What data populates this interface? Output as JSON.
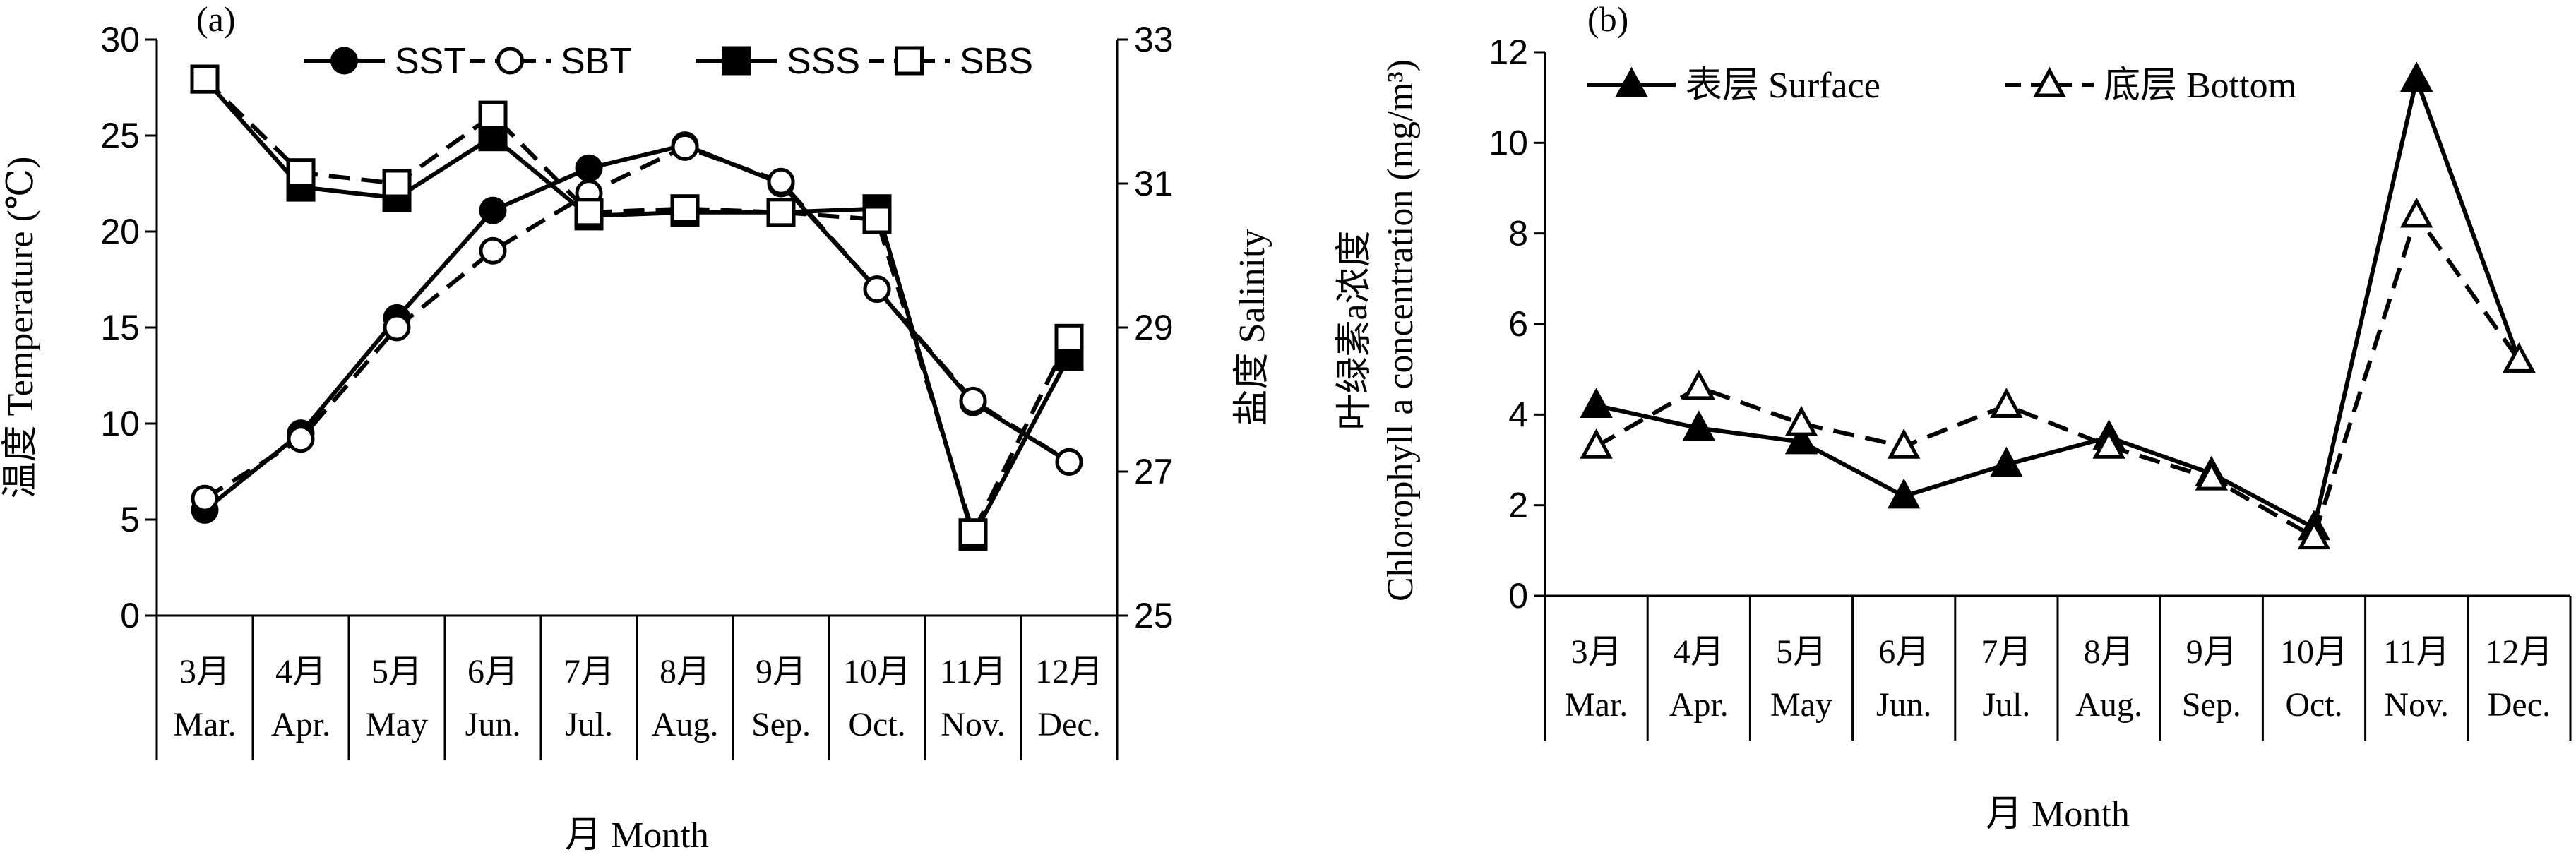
{
  "chart_data": [
    {
      "type": "line",
      "panel_label": "(a)",
      "categories": [
        {
          "zh": "3月",
          "en": "Mar."
        },
        {
          "zh": "4月",
          "en": "Apr."
        },
        {
          "zh": "5月",
          "en": "May"
        },
        {
          "zh": "6月",
          "en": "Jun."
        },
        {
          "zh": "7月",
          "en": "Jul."
        },
        {
          "zh": "8月",
          "en": "Aug."
        },
        {
          "zh": "9月",
          "en": "Sep."
        },
        {
          "zh": "10月",
          "en": "Oct."
        },
        {
          "zh": "11月",
          "en": "Nov."
        },
        {
          "zh": "12月",
          "en": "Dec."
        }
      ],
      "xlabel": "月 Month",
      "ylabel_left": "温度 Temperature (℃)",
      "ylabel_right": "盐度 Salinity",
      "ylim_left": [
        0,
        30
      ],
      "yticks_left": [
        0,
        5,
        10,
        15,
        20,
        25,
        30
      ],
      "ylim_right": [
        25,
        33
      ],
      "yticks_right": [
        25,
        27,
        29,
        31,
        33
      ],
      "legend_position": "top",
      "series": [
        {
          "name": "SST",
          "axis": "left",
          "marker": "filled-circle",
          "line": "solid",
          "values": [
            5.5,
            9.5,
            15.5,
            21.1,
            23.3,
            24.5,
            22.5,
            17.0,
            11.1,
            8.0
          ]
        },
        {
          "name": "SBT",
          "axis": "left",
          "marker": "open-circle",
          "line": "dashed",
          "values": [
            6.1,
            9.2,
            15.0,
            19.0,
            22.0,
            24.4,
            22.6,
            17.0,
            11.2,
            8.0
          ]
        },
        {
          "name": "SSS",
          "axis": "right",
          "marker": "filled-square",
          "line": "solid",
          "values": [
            32.45,
            30.95,
            30.8,
            31.65,
            30.55,
            30.6,
            30.6,
            30.65,
            26.1,
            28.6
          ]
        },
        {
          "name": "SBS",
          "axis": "right",
          "marker": "open-square",
          "line": "dashed",
          "values": [
            32.45,
            31.15,
            31.0,
            31.95,
            30.6,
            30.65,
            30.6,
            30.5,
            26.15,
            28.85
          ]
        }
      ]
    },
    {
      "type": "line",
      "panel_label": "(b)",
      "categories": [
        {
          "zh": "3月",
          "en": "Mar."
        },
        {
          "zh": "4月",
          "en": "Apr."
        },
        {
          "zh": "5月",
          "en": "May"
        },
        {
          "zh": "6月",
          "en": "Jun."
        },
        {
          "zh": "7月",
          "en": "Jul."
        },
        {
          "zh": "8月",
          "en": "Aug."
        },
        {
          "zh": "9月",
          "en": "Sep."
        },
        {
          "zh": "10月",
          "en": "Oct."
        },
        {
          "zh": "11月",
          "en": "Nov."
        },
        {
          "zh": "12月",
          "en": "Dec."
        }
      ],
      "xlabel": "月 Month",
      "ylabel_line1": "叶绿素a浓度",
      "ylabel_line2": "Chlorophyll a concentration (mg/m³)",
      "ylim": [
        0,
        12
      ],
      "yticks": [
        0,
        2,
        4,
        6,
        8,
        10,
        12
      ],
      "legend_position": "top",
      "series": [
        {
          "name": "表层 Surface",
          "marker": "filled-triangle",
          "line": "solid",
          "values": [
            4.2,
            3.7,
            3.4,
            2.2,
            2.9,
            3.5,
            2.7,
            1.5,
            11.4,
            5.2
          ]
        },
        {
          "name": "底层 Bottom",
          "marker": "open-triangle",
          "line": "dashed",
          "values": [
            3.3,
            4.6,
            3.8,
            3.3,
            4.2,
            3.3,
            2.6,
            1.3,
            8.4,
            5.2
          ]
        }
      ]
    }
  ]
}
